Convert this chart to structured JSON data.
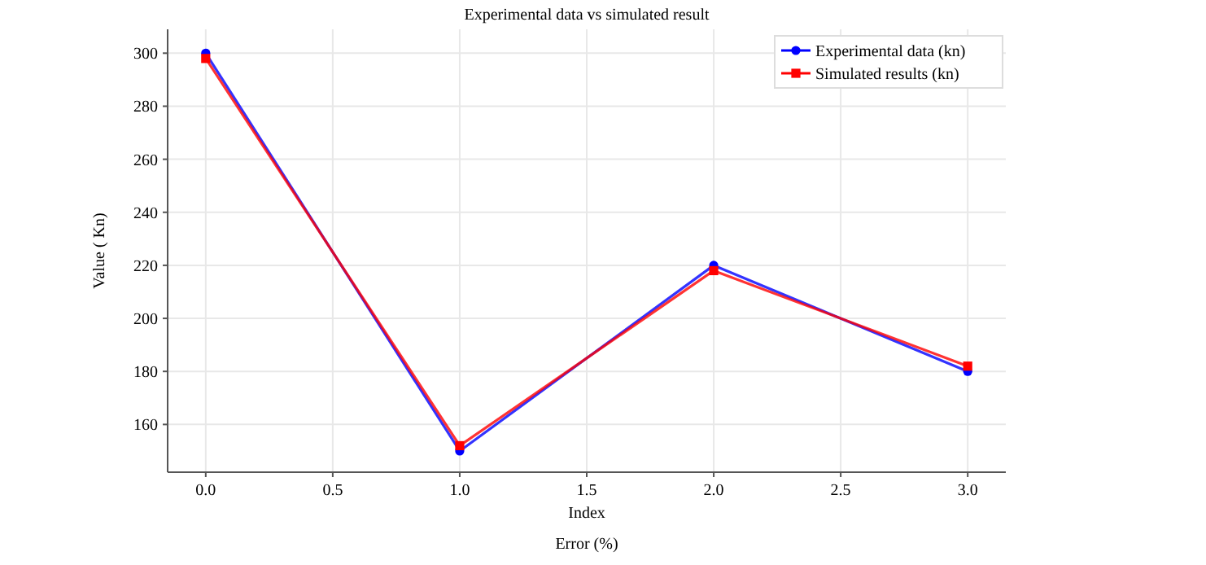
{
  "chart_data": {
    "type": "line",
    "title": "Experimental data vs simulated result",
    "xlabel": "Index",
    "ylabel": "Value ( Kn)",
    "annotations": [
      "Error (%)"
    ],
    "x": [
      0,
      1,
      2,
      3
    ],
    "series": [
      {
        "name": "Experimental data (kn)",
        "color": "#0000ff",
        "values": [
          300,
          150,
          220,
          180
        ],
        "marker": "circle"
      },
      {
        "name": "Simulated results (kn)",
        "color": "#ff0000",
        "values": [
          298,
          152,
          218,
          182
        ],
        "marker": "square"
      }
    ],
    "xlim": [
      -0.15,
      3.15
    ],
    "ylim": [
      142,
      309
    ],
    "xticks": [
      {
        "value": 0,
        "label": "0.0"
      },
      {
        "value": 0.5,
        "label": "0.5"
      },
      {
        "value": 1,
        "label": "1.0"
      },
      {
        "value": 1.5,
        "label": "1.5"
      },
      {
        "value": 2,
        "label": "2.0"
      },
      {
        "value": 2.5,
        "label": "2.5"
      },
      {
        "value": 3,
        "label": "3.0"
      }
    ],
    "yticks": [
      160,
      180,
      200,
      220,
      240,
      260,
      280,
      300
    ],
    "grid": true,
    "legend": "top right",
    "line_style": "solid"
  }
}
